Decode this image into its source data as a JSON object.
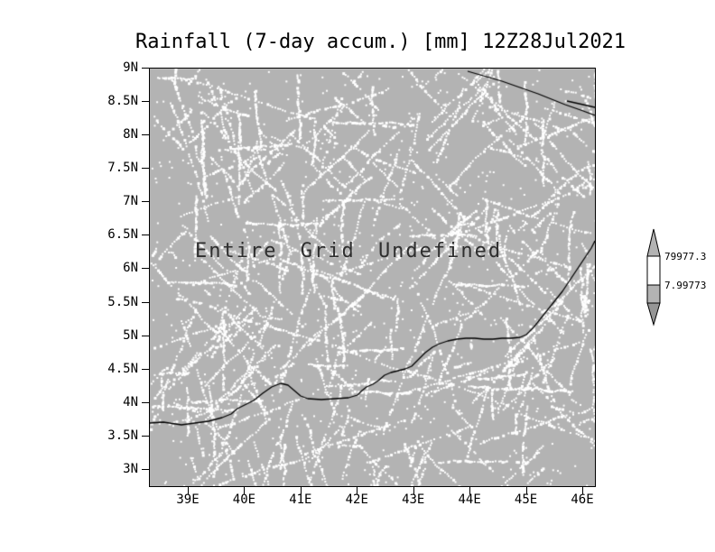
{
  "title": "Rainfall (7-day accum.) [mm] 12Z28Jul2021",
  "overlay": {
    "message": "Entire Grid Undefined"
  },
  "axes": {
    "y_labels": [
      "9N",
      "8.5N",
      "8N",
      "7.5N",
      "7N",
      "6.5N",
      "6N",
      "5.5N",
      "5N",
      "4.5N",
      "4N",
      "3.5N",
      "3N"
    ],
    "x_labels": [
      "39E",
      "40E",
      "41E",
      "42E",
      "43E",
      "44E",
      "45E",
      "46E"
    ]
  },
  "colorbar": {
    "labels": [
      "79977.3",
      "7.99773"
    ]
  },
  "colors": {
    "grid_fill": "#b3b3b3",
    "speckle": "#ffffff",
    "line": "#000000"
  },
  "chart_data": {
    "type": "heatmap",
    "title": "Rainfall (7-day accum.) [mm] 12Z28Jul2021",
    "xlabel": "",
    "ylabel": "",
    "x_ticks": [
      "39E",
      "40E",
      "41E",
      "42E",
      "43E",
      "44E",
      "45E",
      "46E"
    ],
    "y_ticks": [
      "9N",
      "8.5N",
      "8N",
      "7.5N",
      "7N",
      "6.5N",
      "6N",
      "5.5N",
      "5N",
      "4.5N",
      "4N",
      "3.5N",
      "3N"
    ],
    "values": null,
    "status": "Entire Grid Undefined",
    "colorbar_levels": [
      7.99773,
      79977.3
    ],
    "legend_position": "right",
    "grid": false
  }
}
